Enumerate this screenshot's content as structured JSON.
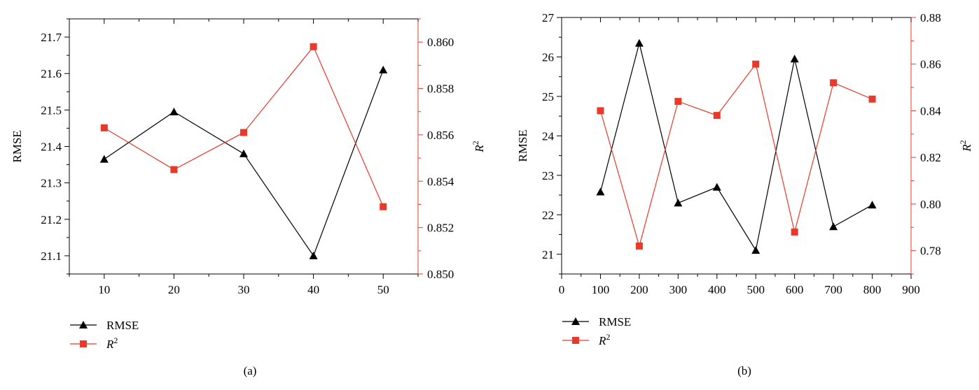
{
  "chart_data": [
    {
      "type": "line",
      "caption": "(a)",
      "x": [
        10,
        20,
        30,
        40,
        50
      ],
      "xlim": [
        5,
        55
      ],
      "xticks": [
        10,
        20,
        30,
        40,
        50
      ],
      "ylabel": "RMSE",
      "ylim": [
        21.05,
        21.75
      ],
      "yticks": [
        "21.1",
        "21.2",
        "21.3",
        "21.4",
        "21.5",
        "21.6",
        "21.7"
      ],
      "y2label": "R",
      "y2label_sup": "2",
      "y2lim": [
        0.85,
        0.861
      ],
      "y2ticks": [
        "0.850",
        "0.852",
        "0.854",
        "0.856",
        "0.858",
        "0.860"
      ],
      "series": [
        {
          "name": "RMSE",
          "axis": "left",
          "marker": "triangle",
          "color": "#000000",
          "values": [
            21.365,
            21.495,
            21.38,
            21.1,
            21.61
          ]
        },
        {
          "name": "R",
          "name_sup": "2",
          "axis": "right",
          "marker": "square",
          "color": "#e8392a",
          "values": [
            0.8563,
            0.8545,
            0.8561,
            0.8598,
            0.8529
          ]
        }
      ],
      "legend": "bottom-left",
      "grid": false
    },
    {
      "type": "line",
      "caption": "(b)",
      "x": [
        100,
        200,
        300,
        400,
        500,
        600,
        700,
        800
      ],
      "xlim": [
        0,
        900
      ],
      "xticks": [
        0,
        100,
        200,
        300,
        400,
        500,
        600,
        700,
        800,
        900
      ],
      "ylabel": "RMSE",
      "ylim": [
        20.5,
        27
      ],
      "yticks": [
        "21",
        "22",
        "23",
        "24",
        "25",
        "26",
        "27"
      ],
      "y2label": "R",
      "y2label_sup": "2",
      "y2lim": [
        0.77,
        0.88
      ],
      "y2ticks": [
        "0.78",
        "0.80",
        "0.82",
        "0.84",
        "0.86",
        "0.88"
      ],
      "series": [
        {
          "name": "RMSE",
          "axis": "left",
          "marker": "triangle",
          "color": "#000000",
          "values": [
            22.58,
            26.35,
            22.3,
            22.7,
            21.1,
            25.95,
            21.7,
            22.25
          ]
        },
        {
          "name": "R",
          "name_sup": "2",
          "axis": "right",
          "marker": "square",
          "color": "#e8392a",
          "values": [
            0.84,
            0.782,
            0.844,
            0.838,
            0.86,
            0.788,
            0.852,
            0.845
          ]
        }
      ],
      "legend": "bottom-left",
      "grid": false
    }
  ]
}
